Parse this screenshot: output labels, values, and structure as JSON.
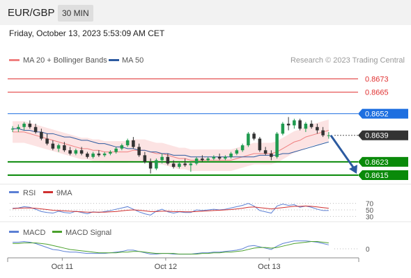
{
  "header": {
    "symbol": "EUR/GBP",
    "timeframe": "30 MIN"
  },
  "datetime": "Friday, October 13, 2023 5:53:09 AM CET",
  "legend": {
    "ma20": {
      "label": "MA 20 + Bollinger Bands",
      "color": "#f08080"
    },
    "ma50": {
      "label": "MA 50",
      "color": "#2c5aa0"
    }
  },
  "credit": "Research © 2023 Trading Central",
  "price_panel": {
    "ylim": [
      0.86125,
      0.8682
    ],
    "resistances": [
      0.8673,
      0.8665
    ],
    "pivot": 0.8652,
    "current": 0.8639,
    "supports": [
      0.8623,
      0.8615
    ],
    "labels": [
      "0.8673",
      "0.8665",
      "0.8652",
      "0.8639",
      "0.8623",
      "0.8615"
    ],
    "colors": {
      "resistance": "#e03030",
      "pivot": "#1e6fe0",
      "current": "#333333",
      "support": "#0a8a0a",
      "arrow": "#2c5aa0",
      "up": "#1f9b4f",
      "down": "#333333",
      "band": "#fbd7d7"
    }
  },
  "rsi_panel": {
    "label": "RSI",
    "ma_label": "9MA",
    "rsi_color": "#5b7fd4",
    "ma_color": "#d03030",
    "levels": [
      "70",
      "50",
      "30"
    ],
    "ylim": [
      20,
      80
    ]
  },
  "macd_panel": {
    "label": "MACD",
    "signal_label": "MACD Signal",
    "macd_color": "#5b7fd4",
    "signal_color": "#4aa02c",
    "zero_label": "0"
  },
  "x_axis": {
    "ticks": [
      "Oct 11",
      "Oct 12",
      "Oct 13"
    ]
  },
  "chart_data": {
    "type": "candlestick",
    "series": [
      {
        "name": "Price",
        "values": [
          [
            0.86425,
            0.86445,
            0.8641,
            0.8643
          ],
          [
            0.8643,
            0.86455,
            0.8641,
            0.8644
          ],
          [
            0.8644,
            0.8647,
            0.8642,
            0.8646
          ],
          [
            0.8646,
            0.8648,
            0.8643,
            0.8644
          ],
          [
            0.8644,
            0.8646,
            0.864,
            0.8641
          ],
          [
            0.8641,
            0.8643,
            0.8636,
            0.8637
          ],
          [
            0.8637,
            0.864,
            0.8633,
            0.8634
          ],
          [
            0.8634,
            0.8636,
            0.863,
            0.8631
          ],
          [
            0.8631,
            0.8634,
            0.8629,
            0.8633
          ],
          [
            0.8633,
            0.8635,
            0.8629,
            0.863
          ],
          [
            0.863,
            0.8632,
            0.8627,
            0.8628
          ],
          [
            0.8628,
            0.8631,
            0.8627,
            0.863
          ],
          [
            0.863,
            0.8632,
            0.8627,
            0.8628
          ],
          [
            0.8628,
            0.8629,
            0.8625,
            0.8626
          ],
          [
            0.8626,
            0.8629,
            0.8625,
            0.8628
          ],
          [
            0.8628,
            0.863,
            0.8626,
            0.8627
          ],
          [
            0.8627,
            0.8629,
            0.8626,
            0.8628
          ],
          [
            0.8628,
            0.863,
            0.8627,
            0.8629
          ],
          [
            0.8629,
            0.8632,
            0.8628,
            0.8631
          ],
          [
            0.8631,
            0.8634,
            0.863,
            0.8633
          ],
          [
            0.8633,
            0.8637,
            0.8632,
            0.8636
          ],
          [
            0.8636,
            0.8638,
            0.8631,
            0.8632
          ],
          [
            0.8632,
            0.8634,
            0.8626,
            0.8627
          ],
          [
            0.8627,
            0.8629,
            0.8622,
            0.8623
          ],
          [
            0.8623,
            0.8625,
            0.8616,
            0.8619
          ],
          [
            0.8619,
            0.8625,
            0.8618,
            0.8624
          ],
          [
            0.8624,
            0.8628,
            0.8622,
            0.8626
          ],
          [
            0.8626,
            0.8628,
            0.8621,
            0.8622
          ],
          [
            0.8622,
            0.8624,
            0.8619,
            0.862
          ],
          [
            0.862,
            0.8623,
            0.8619,
            0.8622
          ],
          [
            0.8622,
            0.8625,
            0.862,
            0.8621
          ],
          [
            0.8621,
            0.8623,
            0.8617,
            0.8622
          ],
          [
            0.8622,
            0.8626,
            0.8621,
            0.8625
          ],
          [
            0.8625,
            0.8627,
            0.8623,
            0.8624
          ],
          [
            0.8624,
            0.8626,
            0.8623,
            0.8625
          ],
          [
            0.8625,
            0.8627,
            0.8624,
            0.8626
          ],
          [
            0.8626,
            0.8628,
            0.8624,
            0.8625
          ],
          [
            0.8625,
            0.8627,
            0.8624,
            0.8626
          ],
          [
            0.8626,
            0.8629,
            0.8625,
            0.8628
          ],
          [
            0.8628,
            0.8631,
            0.8627,
            0.863
          ],
          [
            0.863,
            0.8634,
            0.8629,
            0.8633
          ],
          [
            0.8633,
            0.8641,
            0.8632,
            0.864
          ],
          [
            0.864,
            0.8641,
            0.8636,
            0.8637
          ],
          [
            0.8637,
            0.8638,
            0.8629,
            0.863
          ],
          [
            0.863,
            0.8632,
            0.8627,
            0.8628
          ],
          [
            0.8628,
            0.863,
            0.8624,
            0.8626
          ],
          [
            0.8626,
            0.8641,
            0.8625,
            0.864
          ],
          [
            0.864,
            0.8647,
            0.8639,
            0.8646
          ],
          [
            0.8646,
            0.865,
            0.8642,
            0.8645
          ],
          [
            0.8645,
            0.8649,
            0.8643,
            0.8648
          ],
          [
            0.8648,
            0.8649,
            0.8642,
            0.8643
          ],
          [
            0.8643,
            0.8647,
            0.8641,
            0.8646
          ],
          [
            0.8646,
            0.8648,
            0.8643,
            0.8644
          ],
          [
            0.8644,
            0.8646,
            0.864,
            0.8642
          ],
          [
            0.8642,
            0.8644,
            0.8638,
            0.8639
          ],
          [
            0.8639,
            0.8641,
            0.8637,
            0.8639
          ]
        ]
      },
      {
        "name": "MA 20",
        "values": [
          0.8641,
          0.8641,
          0.8641,
          0.864,
          0.8639,
          0.8638,
          0.8637,
          0.8636,
          0.8635,
          0.8634,
          0.8633,
          0.8632,
          0.8631,
          0.8631,
          0.863,
          0.863,
          0.8629,
          0.8629,
          0.8629,
          0.8629,
          0.8629,
          0.863,
          0.863,
          0.863,
          0.8629,
          0.8628,
          0.8628,
          0.8627,
          0.8626,
          0.8625,
          0.8625,
          0.8624,
          0.8624,
          0.8624,
          0.8624,
          0.8624,
          0.8624,
          0.8624,
          0.8624,
          0.8625,
          0.8626,
          0.8627,
          0.8628,
          0.8628,
          0.8628,
          0.8628,
          0.8629,
          0.8631,
          0.8633,
          0.8635,
          0.8636,
          0.8638,
          0.8639,
          0.864,
          0.8641,
          0.8642
        ]
      },
      {
        "name": "MA 50",
        "values": [
          0.8643,
          0.8643,
          0.8642,
          0.8642,
          0.8641,
          0.8641,
          0.864,
          0.864,
          0.8639,
          0.8638,
          0.8638,
          0.8637,
          0.8636,
          0.8636,
          0.8635,
          0.8634,
          0.8634,
          0.8633,
          0.8632,
          0.8632,
          0.8631,
          0.8631,
          0.863,
          0.863,
          0.8629,
          0.8629,
          0.8628,
          0.8628,
          0.8627,
          0.8627,
          0.8627,
          0.8626,
          0.8626,
          0.8626,
          0.8626,
          0.8626,
          0.8626,
          0.8626,
          0.8626,
          0.8626,
          0.8626,
          0.8626,
          0.8626,
          0.8627,
          0.8627,
          0.8627,
          0.8627,
          0.8628,
          0.8628,
          0.8629,
          0.863,
          0.8631,
          0.8632,
          0.8633,
          0.8634,
          0.8635
        ]
      },
      {
        "name": "RSI",
        "values": [
          55,
          56,
          60,
          58,
          52,
          45,
          42,
          40,
          46,
          42,
          40,
          46,
          42,
          38,
          44,
          42,
          45,
          48,
          52,
          56,
          60,
          52,
          44,
          38,
          34,
          46,
          52,
          44,
          40,
          44,
          42,
          42,
          50,
          48,
          50,
          52,
          50,
          52,
          56,
          60,
          64,
          70,
          62,
          48,
          44,
          40,
          62,
          68,
          64,
          66,
          58,
          62,
          58,
          52,
          48,
          48
        ]
      },
      {
        "name": "9MA",
        "values": [
          54,
          55,
          56,
          56,
          55,
          53,
          51,
          49,
          48,
          47,
          46,
          45,
          44,
          43,
          43,
          43,
          43,
          44,
          45,
          47,
          49,
          50,
          49,
          47,
          45,
          45,
          46,
          46,
          45,
          45,
          44,
          44,
          45,
          46,
          47,
          48,
          49,
          50,
          51,
          53,
          55,
          58,
          59,
          57,
          55,
          53,
          55,
          57,
          59,
          61,
          61,
          62,
          61,
          59,
          57,
          55
        ]
      },
      {
        "name": "MACD",
        "values": [
          0.0001,
          0.0001,
          0.00011,
          0.0001,
          8e-05,
          5e-05,
          2e-05,
          -1e-05,
          -2e-05,
          -4e-05,
          -5e-05,
          -5e-05,
          -6e-05,
          -7e-05,
          -7e-05,
          -7e-05,
          -7e-05,
          -6e-05,
          -5e-05,
          -4e-05,
          -2e-05,
          -2e-05,
          -4e-05,
          -6e-05,
          -8e-05,
          -8e-05,
          -7e-05,
          -7e-05,
          -8e-05,
          -8e-05,
          -8e-05,
          -8e-05,
          -7e-05,
          -6e-05,
          -6e-05,
          -5e-05,
          -5e-05,
          -4e-05,
          -3e-05,
          -2e-05,
          0.0,
          4e-05,
          5e-05,
          3e-05,
          1e-05,
          -1e-05,
          4e-05,
          8e-05,
          0.0001,
          0.00012,
          0.00012,
          0.00012,
          0.00011,
          0.0001,
          8e-05,
          6e-05
        ]
      },
      {
        "name": "MACD Signal",
        "values": [
          8e-05,
          8e-05,
          9e-05,
          9e-05,
          9e-05,
          8e-05,
          7e-05,
          5e-05,
          3e-05,
          1e-05,
          -1e-05,
          -2e-05,
          -3e-05,
          -4e-05,
          -5e-05,
          -6e-05,
          -6e-05,
          -6e-05,
          -6e-05,
          -5e-05,
          -5e-05,
          -4e-05,
          -4e-05,
          -5e-05,
          -6e-05,
          -7e-05,
          -7e-05,
          -7e-05,
          -7e-05,
          -8e-05,
          -8e-05,
          -8e-05,
          -8e-05,
          -7e-05,
          -7e-05,
          -6e-05,
          -6e-05,
          -5e-05,
          -5e-05,
          -4e-05,
          -3e-05,
          -1e-05,
          1e-05,
          2e-05,
          2e-05,
          1e-05,
          2e-05,
          4e-05,
          6e-05,
          8e-05,
          9e-05,
          0.0001,
          0.00011,
          0.00011,
          0.0001,
          9e-05
        ]
      }
    ],
    "bollinger_width": 0.00065,
    "tick_positions": [
      9,
      27,
      45
    ],
    "forecast": {
      "from": 0.8639,
      "to": 0.8615
    }
  }
}
